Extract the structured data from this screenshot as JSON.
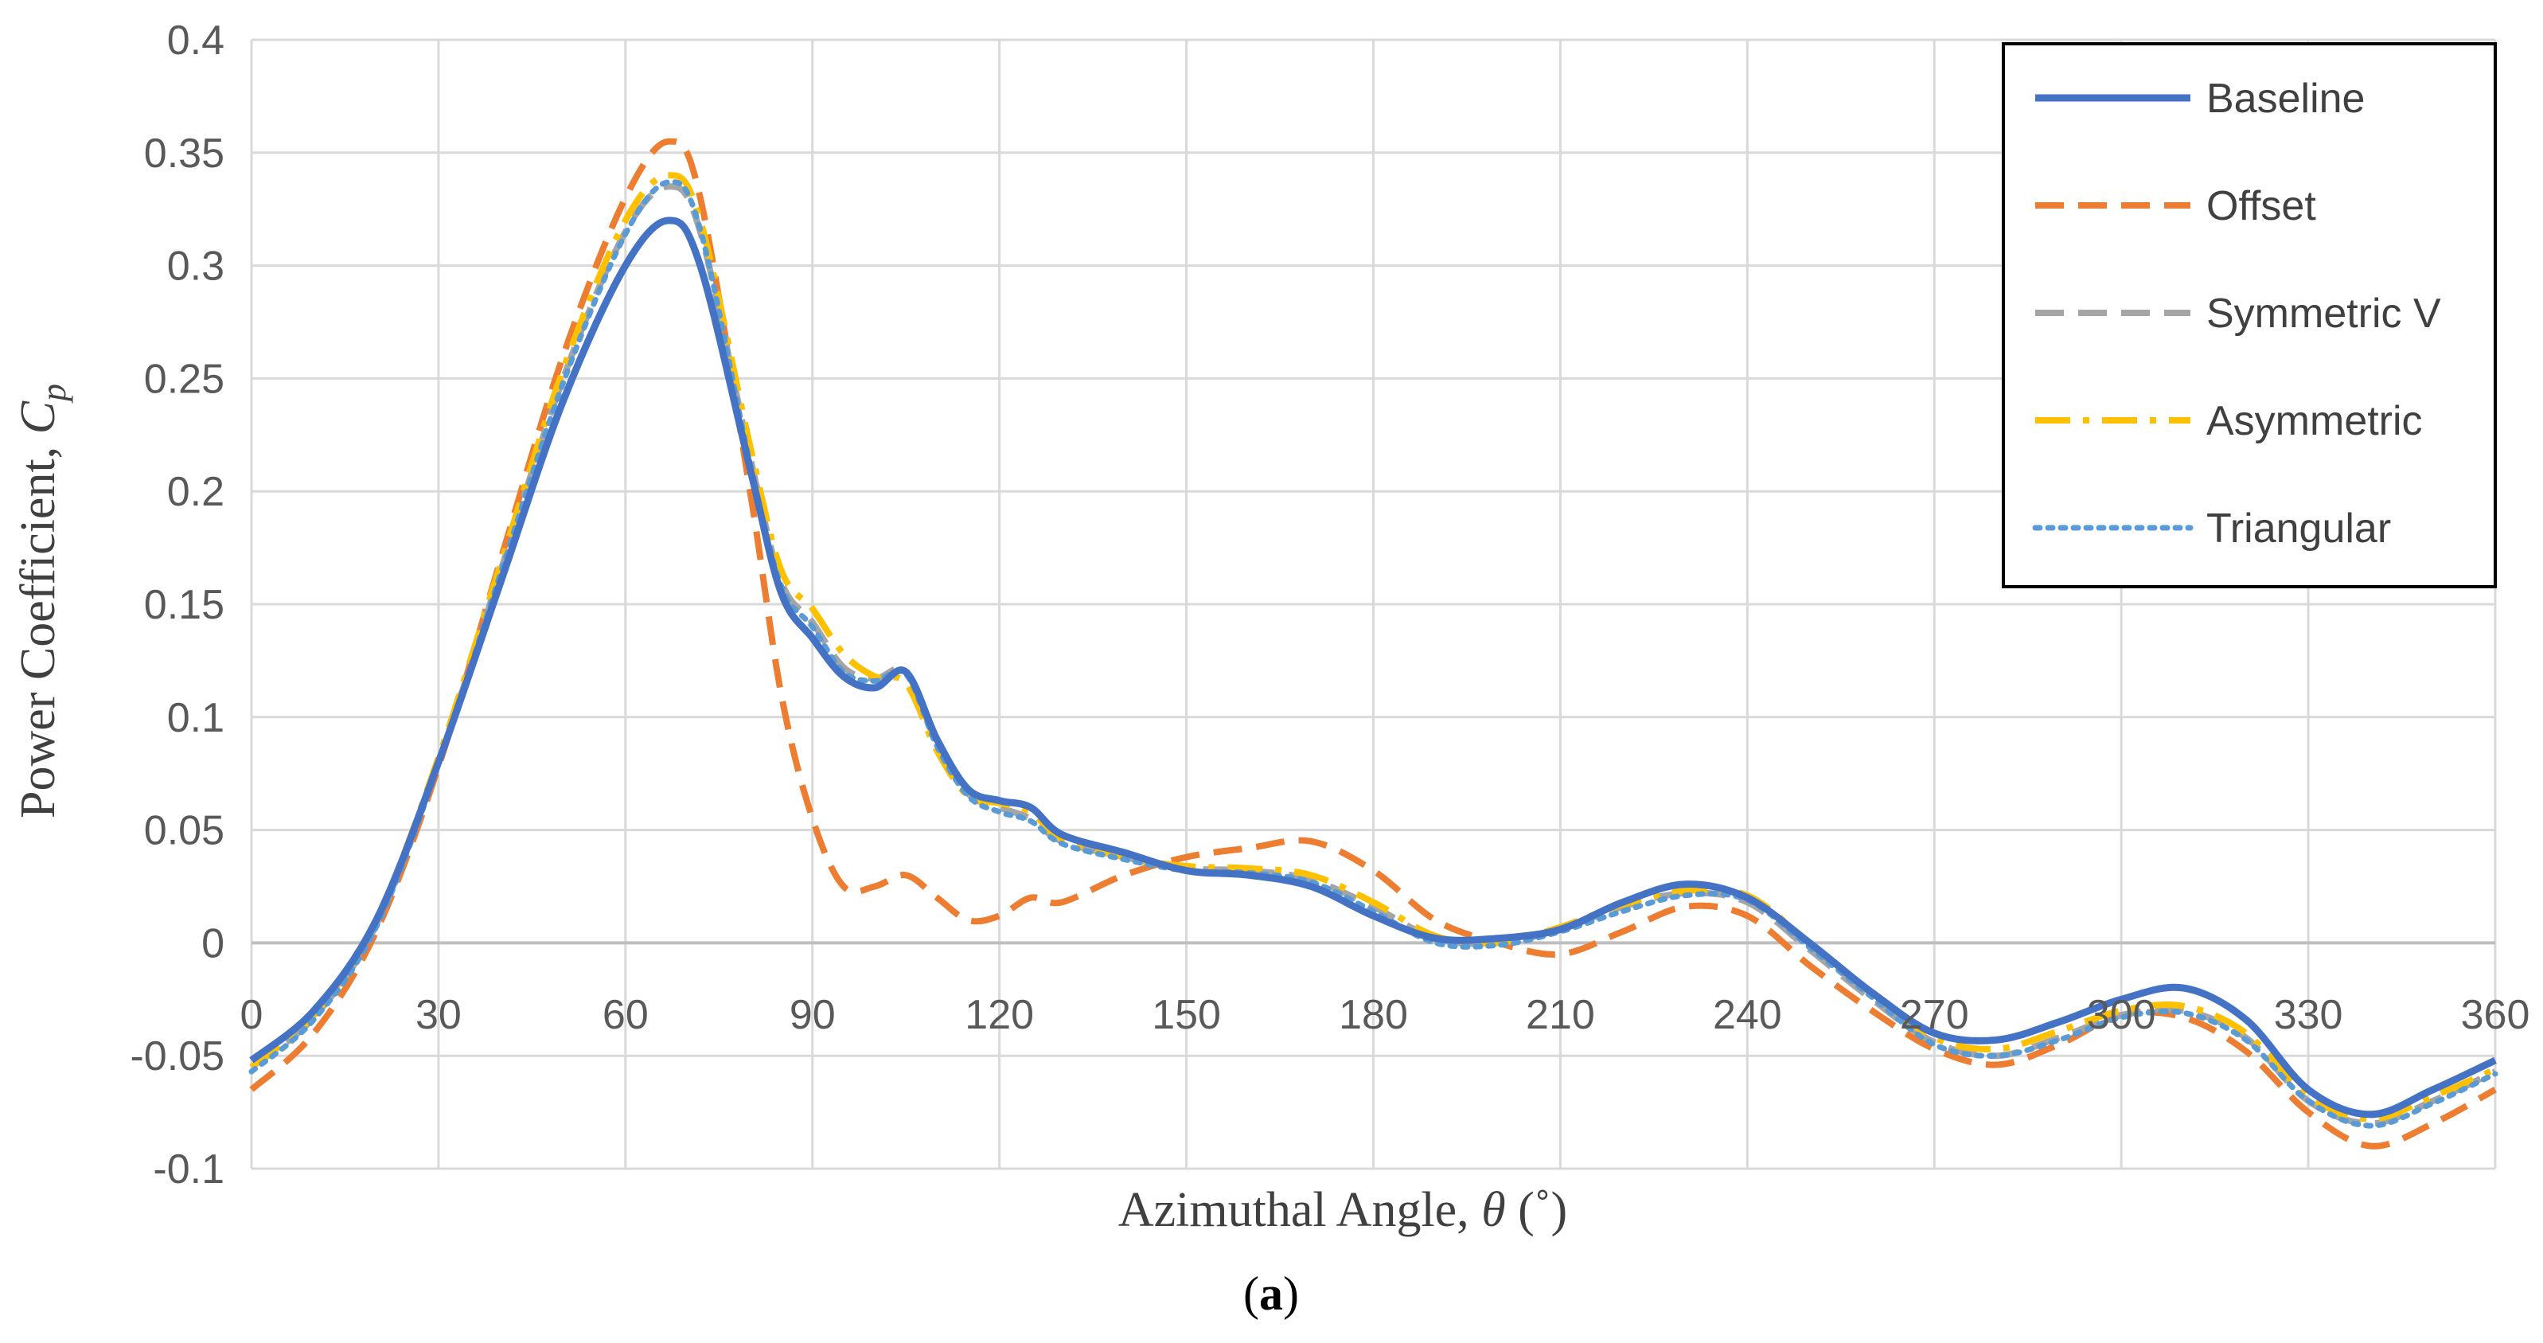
{
  "chart_data": {
    "type": "line",
    "title": "",
    "caption": {
      "open": "(",
      "letter": "a",
      "close": ")"
    },
    "xlabel": {
      "text": "Azimuthal Angle, ",
      "symbol": "θ",
      "unit": " (˚)"
    },
    "ylabel": {
      "text": "Power Coefficient, ",
      "symbol": "C",
      "subscript": "p"
    },
    "xlim": [
      0,
      360
    ],
    "ylim": [
      -0.1,
      0.4
    ],
    "grid": true,
    "legend_position": "top-right",
    "x_ticks": [
      0,
      30,
      60,
      90,
      120,
      150,
      180,
      210,
      240,
      270,
      300,
      330,
      360
    ],
    "x_tick_labels": [
      "0",
      "30",
      "60",
      "90",
      "120",
      "150",
      "180",
      "210",
      "240",
      "270",
      "300",
      "330",
      "360"
    ],
    "y_ticks": [
      -0.1,
      -0.05,
      0,
      0.05,
      0.1,
      0.15,
      0.2,
      0.25,
      0.3,
      0.35,
      0.4
    ],
    "y_tick_labels": [
      "-0.1",
      "-0.05",
      "0",
      "0.05",
      "0.1",
      "0.15",
      "0.2",
      "0.25",
      "0.3",
      "0.35",
      "0.4"
    ],
    "series": [
      {
        "name": "Baseline",
        "color": "#4472C4",
        "style": "solid",
        "points": [
          [
            0,
            -0.052
          ],
          [
            10,
            -0.03
          ],
          [
            20,
            0.01
          ],
          [
            30,
            0.08
          ],
          [
            40,
            0.16
          ],
          [
            50,
            0.24
          ],
          [
            60,
            0.3
          ],
          [
            67,
            0.32
          ],
          [
            72,
            0.3
          ],
          [
            80,
            0.21
          ],
          [
            85,
            0.155
          ],
          [
            90,
            0.135
          ],
          [
            95,
            0.118
          ],
          [
            100,
            0.113
          ],
          [
            105,
            0.12
          ],
          [
            110,
            0.09
          ],
          [
            115,
            0.068
          ],
          [
            120,
            0.063
          ],
          [
            125,
            0.06
          ],
          [
            130,
            0.048
          ],
          [
            140,
            0.04
          ],
          [
            150,
            0.032
          ],
          [
            160,
            0.03
          ],
          [
            170,
            0.025
          ],
          [
            180,
            0.012
          ],
          [
            190,
            0.002
          ],
          [
            200,
            0.002
          ],
          [
            210,
            0.006
          ],
          [
            220,
            0.018
          ],
          [
            230,
            0.026
          ],
          [
            240,
            0.02
          ],
          [
            250,
            0.0
          ],
          [
            260,
            -0.022
          ],
          [
            270,
            -0.04
          ],
          [
            280,
            -0.043
          ],
          [
            290,
            -0.035
          ],
          [
            300,
            -0.025
          ],
          [
            310,
            -0.02
          ],
          [
            320,
            -0.034
          ],
          [
            330,
            -0.065
          ],
          [
            340,
            -0.076
          ],
          [
            350,
            -0.065
          ],
          [
            360,
            -0.052
          ]
        ]
      },
      {
        "name": "Offset",
        "color": "#ED7D31",
        "style": "dashed",
        "points": [
          [
            0,
            -0.065
          ],
          [
            10,
            -0.04
          ],
          [
            20,
            0.005
          ],
          [
            30,
            0.078
          ],
          [
            40,
            0.17
          ],
          [
            50,
            0.26
          ],
          [
            60,
            0.33
          ],
          [
            67,
            0.355
          ],
          [
            72,
            0.33
          ],
          [
            80,
            0.2
          ],
          [
            85,
            0.11
          ],
          [
            90,
            0.055
          ],
          [
            95,
            0.025
          ],
          [
            100,
            0.025
          ],
          [
            105,
            0.03
          ],
          [
            110,
            0.02
          ],
          [
            115,
            0.01
          ],
          [
            120,
            0.012
          ],
          [
            125,
            0.02
          ],
          [
            130,
            0.018
          ],
          [
            140,
            0.03
          ],
          [
            150,
            0.038
          ],
          [
            160,
            0.042
          ],
          [
            170,
            0.045
          ],
          [
            180,
            0.032
          ],
          [
            190,
            0.01
          ],
          [
            200,
            0.0
          ],
          [
            210,
            -0.005
          ],
          [
            220,
            0.005
          ],
          [
            230,
            0.016
          ],
          [
            240,
            0.012
          ],
          [
            250,
            -0.01
          ],
          [
            260,
            -0.03
          ],
          [
            270,
            -0.047
          ],
          [
            280,
            -0.054
          ],
          [
            290,
            -0.045
          ],
          [
            300,
            -0.032
          ],
          [
            310,
            -0.033
          ],
          [
            320,
            -0.048
          ],
          [
            330,
            -0.075
          ],
          [
            340,
            -0.09
          ],
          [
            350,
            -0.08
          ],
          [
            360,
            -0.065
          ]
        ]
      },
      {
        "name": "Symmetric V",
        "color": "#A5A5A5",
        "style": "dashed",
        "points": [
          [
            0,
            -0.055
          ],
          [
            10,
            -0.033
          ],
          [
            20,
            0.008
          ],
          [
            30,
            0.08
          ],
          [
            40,
            0.165
          ],
          [
            50,
            0.25
          ],
          [
            60,
            0.315
          ],
          [
            67,
            0.335
          ],
          [
            72,
            0.315
          ],
          [
            80,
            0.215
          ],
          [
            85,
            0.16
          ],
          [
            90,
            0.142
          ],
          [
            95,
            0.122
          ],
          [
            100,
            0.117
          ],
          [
            105,
            0.12
          ],
          [
            110,
            0.088
          ],
          [
            115,
            0.066
          ],
          [
            120,
            0.06
          ],
          [
            125,
            0.055
          ],
          [
            130,
            0.045
          ],
          [
            140,
            0.038
          ],
          [
            150,
            0.033
          ],
          [
            160,
            0.032
          ],
          [
            170,
            0.028
          ],
          [
            180,
            0.016
          ],
          [
            190,
            0.002
          ],
          [
            200,
            0.0
          ],
          [
            210,
            0.006
          ],
          [
            220,
            0.016
          ],
          [
            230,
            0.022
          ],
          [
            240,
            0.018
          ],
          [
            250,
            -0.003
          ],
          [
            260,
            -0.025
          ],
          [
            270,
            -0.044
          ],
          [
            280,
            -0.05
          ],
          [
            290,
            -0.042
          ],
          [
            300,
            -0.032
          ],
          [
            310,
            -0.03
          ],
          [
            320,
            -0.042
          ],
          [
            330,
            -0.07
          ],
          [
            340,
            -0.08
          ],
          [
            350,
            -0.07
          ],
          [
            360,
            -0.057
          ]
        ]
      },
      {
        "name": "Asymmetric",
        "color": "#FFC000",
        "style": "dashdot",
        "points": [
          [
            0,
            -0.055
          ],
          [
            10,
            -0.032
          ],
          [
            20,
            0.01
          ],
          [
            30,
            0.082
          ],
          [
            40,
            0.168
          ],
          [
            50,
            0.254
          ],
          [
            60,
            0.32
          ],
          [
            67,
            0.34
          ],
          [
            72,
            0.32
          ],
          [
            80,
            0.22
          ],
          [
            85,
            0.165
          ],
          [
            90,
            0.148
          ],
          [
            95,
            0.128
          ],
          [
            100,
            0.118
          ],
          [
            105,
            0.115
          ],
          [
            110,
            0.085
          ],
          [
            115,
            0.065
          ],
          [
            120,
            0.062
          ],
          [
            125,
            0.058
          ],
          [
            130,
            0.046
          ],
          [
            140,
            0.038
          ],
          [
            150,
            0.034
          ],
          [
            160,
            0.033
          ],
          [
            170,
            0.03
          ],
          [
            180,
            0.018
          ],
          [
            190,
            0.003
          ],
          [
            200,
            0.0
          ],
          [
            210,
            0.007
          ],
          [
            220,
            0.017
          ],
          [
            230,
            0.023
          ],
          [
            240,
            0.021
          ],
          [
            250,
            0.0
          ],
          [
            260,
            -0.022
          ],
          [
            270,
            -0.042
          ],
          [
            280,
            -0.047
          ],
          [
            290,
            -0.039
          ],
          [
            300,
            -0.03
          ],
          [
            310,
            -0.028
          ],
          [
            320,
            -0.04
          ],
          [
            330,
            -0.068
          ],
          [
            340,
            -0.078
          ],
          [
            350,
            -0.068
          ],
          [
            360,
            -0.056
          ]
        ]
      },
      {
        "name": "Triangular",
        "color": "#5B9BD5",
        "style": "dotted",
        "points": [
          [
            0,
            -0.057
          ],
          [
            10,
            -0.034
          ],
          [
            20,
            0.007
          ],
          [
            30,
            0.079
          ],
          [
            40,
            0.164
          ],
          [
            50,
            0.248
          ],
          [
            60,
            0.314
          ],
          [
            67,
            0.337
          ],
          [
            72,
            0.316
          ],
          [
            80,
            0.212
          ],
          [
            85,
            0.158
          ],
          [
            90,
            0.14
          ],
          [
            95,
            0.12
          ],
          [
            100,
            0.116
          ],
          [
            105,
            0.119
          ],
          [
            110,
            0.087
          ],
          [
            115,
            0.065
          ],
          [
            120,
            0.058
          ],
          [
            125,
            0.054
          ],
          [
            130,
            0.044
          ],
          [
            140,
            0.037
          ],
          [
            150,
            0.032
          ],
          [
            160,
            0.031
          ],
          [
            170,
            0.027
          ],
          [
            180,
            0.014
          ],
          [
            190,
            0.0
          ],
          [
            200,
            -0.001
          ],
          [
            210,
            0.005
          ],
          [
            220,
            0.014
          ],
          [
            230,
            0.021
          ],
          [
            240,
            0.019
          ],
          [
            250,
            -0.002
          ],
          [
            260,
            -0.024
          ],
          [
            270,
            -0.045
          ],
          [
            280,
            -0.05
          ],
          [
            290,
            -0.043
          ],
          [
            300,
            -0.033
          ],
          [
            310,
            -0.031
          ],
          [
            320,
            -0.043
          ],
          [
            330,
            -0.07
          ],
          [
            340,
            -0.081
          ],
          [
            350,
            -0.071
          ],
          [
            360,
            -0.058
          ]
        ]
      }
    ]
  }
}
